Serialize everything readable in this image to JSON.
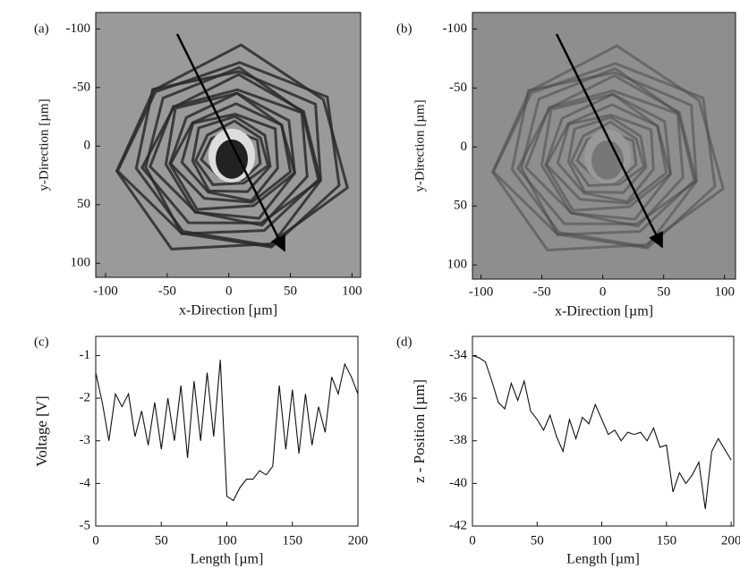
{
  "chart_data": [
    {
      "type": "image",
      "panel_label": "(a)",
      "xlabel": "x-Direction [µm]",
      "ylabel": "y-Direction [µm]",
      "xlim": [
        -108,
        107
      ],
      "xticks": [
        -100,
        -50,
        0,
        50,
        100
      ],
      "ylim": [
        112,
        -114
      ],
      "yticks": [
        -100,
        -50,
        0,
        50,
        100
      ]
    },
    {
      "type": "image",
      "panel_label": "(b)",
      "xlabel": "x-Direction [µm]",
      "ylabel": "y-Direction [µm]",
      "xlim": [
        -107,
        109
      ],
      "xticks": [
        -100,
        -50,
        0,
        50,
        100
      ],
      "ylim": [
        112,
        -114
      ],
      "yticks": [
        -100,
        -50,
        0,
        50,
        100
      ]
    },
    {
      "type": "line",
      "panel_label": "(c)",
      "xlabel": "Length [µm]",
      "ylabel": "Voltage [V]",
      "xlim": [
        0,
        200
      ],
      "xticks": [
        0,
        50,
        100,
        150,
        200
      ],
      "ylim": [
        -5,
        -0.55
      ],
      "yticks": [
        -5,
        -4,
        -3,
        -2,
        -1
      ],
      "color": "#111111",
      "x": [
        0,
        5,
        10,
        15,
        20,
        25,
        30,
        35,
        40,
        45,
        50,
        55,
        60,
        65,
        70,
        75,
        80,
        85,
        90,
        95,
        100,
        105,
        110,
        115,
        120,
        125,
        130,
        135,
        140,
        145,
        150,
        155,
        160,
        165,
        170,
        175,
        180,
        185,
        190,
        195,
        200
      ],
      "values": [
        -1.4,
        -2.1,
        -3.0,
        -1.9,
        -2.2,
        -1.9,
        -2.9,
        -2.3,
        -3.1,
        -2.1,
        -3.2,
        -2.0,
        -3.0,
        -1.7,
        -3.4,
        -1.6,
        -3.0,
        -1.4,
        -2.9,
        -1.1,
        -4.3,
        -4.4,
        -4.1,
        -3.9,
        -3.9,
        -3.7,
        -3.8,
        -3.6,
        -1.7,
        -3.2,
        -1.8,
        -3.3,
        -1.9,
        -3.1,
        -2.2,
        -2.8,
        -1.5,
        -1.9,
        -1.2,
        -1.5,
        -1.9
      ]
    },
    {
      "type": "line",
      "panel_label": "(d)",
      "xlabel": "Length [µm]",
      "ylabel": "z - Position [µm]",
      "xlim": [
        0,
        202
      ],
      "xticks": [
        0,
        50,
        100,
        150,
        200
      ],
      "ylim": [
        -42,
        -33.1
      ],
      "yticks": [
        -42,
        -40,
        -38,
        -36,
        -34
      ],
      "color": "#111111",
      "x": [
        0,
        5,
        10,
        15,
        20,
        25,
        30,
        35,
        40,
        45,
        50,
        55,
        60,
        65,
        70,
        75,
        80,
        85,
        90,
        95,
        100,
        105,
        110,
        115,
        120,
        125,
        130,
        135,
        140,
        145,
        150,
        155,
        160,
        165,
        170,
        175,
        180,
        185,
        190,
        195,
        200
      ],
      "values": [
        -34.0,
        -34.1,
        -34.3,
        -35.2,
        -36.2,
        -36.5,
        -35.3,
        -36.1,
        -35.2,
        -36.6,
        -37.0,
        -37.5,
        -36.8,
        -37.8,
        -38.5,
        -37.0,
        -37.9,
        -36.9,
        -37.2,
        -36.3,
        -37.0,
        -37.7,
        -37.5,
        -38.0,
        -37.6,
        -37.7,
        -37.6,
        -38.0,
        -37.4,
        -38.3,
        -38.2,
        -40.4,
        -39.5,
        -40.0,
        -39.6,
        -39.0,
        -41.2,
        -38.5,
        -37.9,
        -38.4,
        -38.9
      ]
    }
  ]
}
